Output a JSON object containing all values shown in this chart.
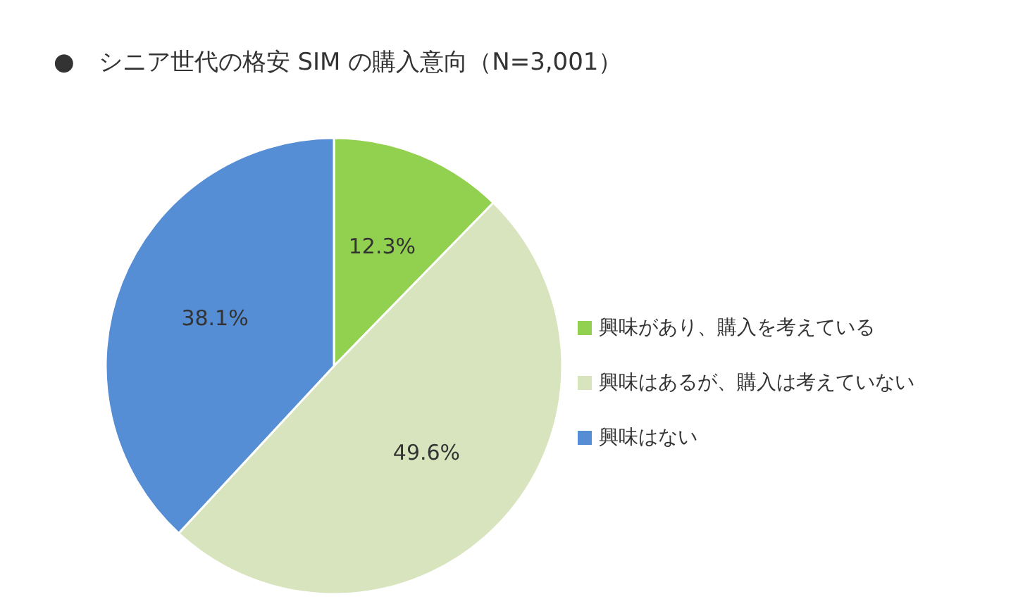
{
  "chart_data": {
    "type": "pie",
    "title": "●　シニア世代の格安 SIM の購入意向（N=3,001）",
    "categories": [
      "興味があり、購入を考えている",
      "興味はあるが、購入は考えていない",
      "興味はない"
    ],
    "values": [
      12.3,
      49.6,
      38.1
    ],
    "colors": [
      "#92d050",
      "#d7e4bd",
      "#558ed5"
    ],
    "value_labels": [
      "12.3%",
      "49.6%",
      "38.1%"
    ],
    "legend": "right"
  }
}
